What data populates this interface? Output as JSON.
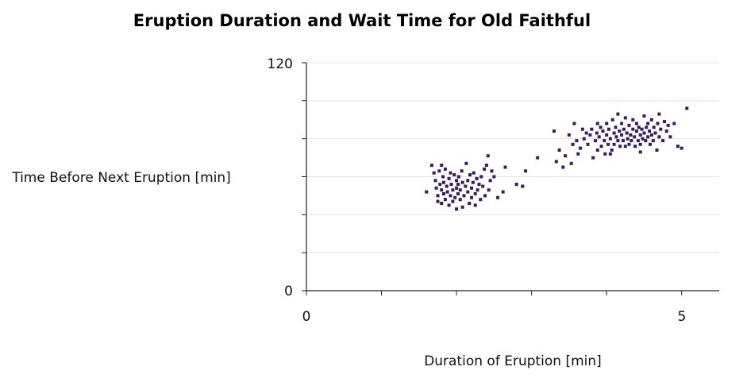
{
  "chart_data": {
    "type": "scatter",
    "title": "Eruption Duration and Wait Time for Old Faithful",
    "xlabel": "Duration of Eruption [min]",
    "ylabel": "Time Before Next Eruption [min]",
    "xlim": [
      0,
      5.5
    ],
    "ylim": [
      0,
      120
    ],
    "x_tick_labels": [
      "0",
      "5"
    ],
    "y_tick_labels": [
      "0",
      "120"
    ],
    "grid": true,
    "marker_color": "#3b1a5e",
    "points": [
      [
        1.6,
        52
      ],
      [
        1.67,
        66
      ],
      [
        1.7,
        62
      ],
      [
        1.72,
        58
      ],
      [
        1.73,
        54
      ],
      [
        1.75,
        50
      ],
      [
        1.75,
        47
      ],
      [
        1.77,
        63
      ],
      [
        1.78,
        56
      ],
      [
        1.8,
        53
      ],
      [
        1.8,
        46
      ],
      [
        1.82,
        60
      ],
      [
        1.83,
        51
      ],
      [
        1.83,
        57
      ],
      [
        1.85,
        64
      ],
      [
        1.85,
        48
      ],
      [
        1.87,
        55
      ],
      [
        1.88,
        52
      ],
      [
        1.9,
        59
      ],
      [
        1.9,
        45
      ],
      [
        1.92,
        62
      ],
      [
        1.92,
        50
      ],
      [
        1.93,
        56
      ],
      [
        1.95,
        53
      ],
      [
        1.95,
        47
      ],
      [
        1.97,
        61
      ],
      [
        1.98,
        49
      ],
      [
        2.0,
        58
      ],
      [
        2.0,
        54
      ],
      [
        2.0,
        43
      ],
      [
        2.02,
        51
      ],
      [
        2.02,
        56
      ],
      [
        2.03,
        60
      ],
      [
        2.05,
        48
      ],
      [
        2.05,
        53
      ],
      [
        2.07,
        63
      ],
      [
        2.08,
        57
      ],
      [
        2.1,
        50
      ],
      [
        2.12,
        55
      ],
      [
        2.13,
        67
      ],
      [
        2.15,
        52
      ],
      [
        2.15,
        58
      ],
      [
        2.17,
        46
      ],
      [
        2.18,
        61
      ],
      [
        2.2,
        54
      ],
      [
        2.2,
        49
      ],
      [
        2.22,
        57
      ],
      [
        2.23,
        62
      ],
      [
        2.25,
        51
      ],
      [
        2.25,
        45
      ],
      [
        2.27,
        59
      ],
      [
        2.28,
        53
      ],
      [
        2.3,
        56
      ],
      [
        2.32,
        48
      ],
      [
        2.33,
        60
      ],
      [
        2.35,
        55
      ],
      [
        2.37,
        64
      ],
      [
        2.38,
        50
      ],
      [
        2.4,
        66
      ],
      [
        2.42,
        71
      ],
      [
        2.43,
        53
      ],
      [
        2.45,
        58
      ],
      [
        2.47,
        63
      ],
      [
        2.5,
        60
      ],
      [
        2.55,
        49
      ],
      [
        2.62,
        52
      ],
      [
        2.65,
        65
      ],
      [
        2.8,
        56
      ],
      [
        2.88,
        55
      ],
      [
        2.92,
        63
      ],
      [
        3.08,
        70
      ],
      [
        3.3,
        84
      ],
      [
        3.33,
        68
      ],
      [
        3.37,
        74
      ],
      [
        3.42,
        65
      ],
      [
        3.45,
        71
      ],
      [
        3.5,
        82
      ],
      [
        3.53,
        67
      ],
      [
        3.57,
        88
      ],
      [
        3.6,
        79
      ],
      [
        3.62,
        72
      ],
      [
        3.65,
        75
      ],
      [
        3.68,
        85
      ],
      [
        3.7,
        80
      ],
      [
        3.73,
        83
      ],
      [
        3.75,
        77
      ],
      [
        3.78,
        82
      ],
      [
        3.8,
        85
      ],
      [
        3.82,
        70
      ],
      [
        3.85,
        79
      ],
      [
        3.87,
        83
      ],
      [
        3.88,
        74
      ],
      [
        3.9,
        81
      ],
      [
        3.92,
        86
      ],
      [
        3.93,
        76
      ],
      [
        3.95,
        84
      ],
      [
        3.97,
        79
      ],
      [
        3.98,
        72
      ],
      [
        4.0,
        88
      ],
      [
        4.0,
        82
      ],
      [
        4.02,
        77
      ],
      [
        4.03,
        85
      ],
      [
        4.05,
        80
      ],
      [
        4.07,
        74
      ],
      [
        4.08,
        90
      ],
      [
        4.1,
        83
      ],
      [
        4.1,
        77
      ],
      [
        4.12,
        86
      ],
      [
        4.13,
        81
      ],
      [
        4.15,
        79
      ],
      [
        4.15,
        93
      ],
      [
        4.17,
        84
      ],
      [
        4.18,
        76
      ],
      [
        4.2,
        88
      ],
      [
        4.2,
        82
      ],
      [
        4.22,
        79
      ],
      [
        4.23,
        85
      ],
      [
        4.25,
        91
      ],
      [
        4.25,
        76
      ],
      [
        4.27,
        83
      ],
      [
        4.28,
        80
      ],
      [
        4.3,
        87
      ],
      [
        4.3,
        77
      ],
      [
        4.32,
        82
      ],
      [
        4.33,
        79
      ],
      [
        4.35,
        85
      ],
      [
        4.35,
        90
      ],
      [
        4.37,
        81
      ],
      [
        4.38,
        76
      ],
      [
        4.4,
        84
      ],
      [
        4.4,
        88
      ],
      [
        4.42,
        79
      ],
      [
        4.43,
        86
      ],
      [
        4.45,
        82
      ],
      [
        4.45,
        77
      ],
      [
        4.47,
        85
      ],
      [
        4.48,
        80
      ],
      [
        4.5,
        92
      ],
      [
        4.5,
        83
      ],
      [
        4.52,
        79
      ],
      [
        4.53,
        86
      ],
      [
        4.55,
        81
      ],
      [
        4.55,
        88
      ],
      [
        4.57,
        84
      ],
      [
        4.58,
        77
      ],
      [
        4.6,
        90
      ],
      [
        4.6,
        82
      ],
      [
        4.62,
        79
      ],
      [
        4.63,
        86
      ],
      [
        4.65,
        83
      ],
      [
        4.67,
        74
      ],
      [
        4.68,
        88
      ],
      [
        4.7,
        81
      ],
      [
        4.7,
        93
      ],
      [
        4.72,
        85
      ],
      [
        4.75,
        79
      ],
      [
        4.77,
        89
      ],
      [
        4.8,
        84
      ],
      [
        4.82,
        87
      ],
      [
        4.85,
        81
      ],
      [
        4.9,
        88
      ],
      [
        4.95,
        76
      ],
      [
        5.0,
        75
      ],
      [
        5.07,
        96
      ],
      [
        3.55,
        77
      ],
      [
        3.88,
        88
      ],
      [
        4.05,
        72
      ],
      [
        4.45,
        73
      ],
      [
        1.8,
        66
      ],
      [
        2.08,
        44
      ]
    ]
  }
}
